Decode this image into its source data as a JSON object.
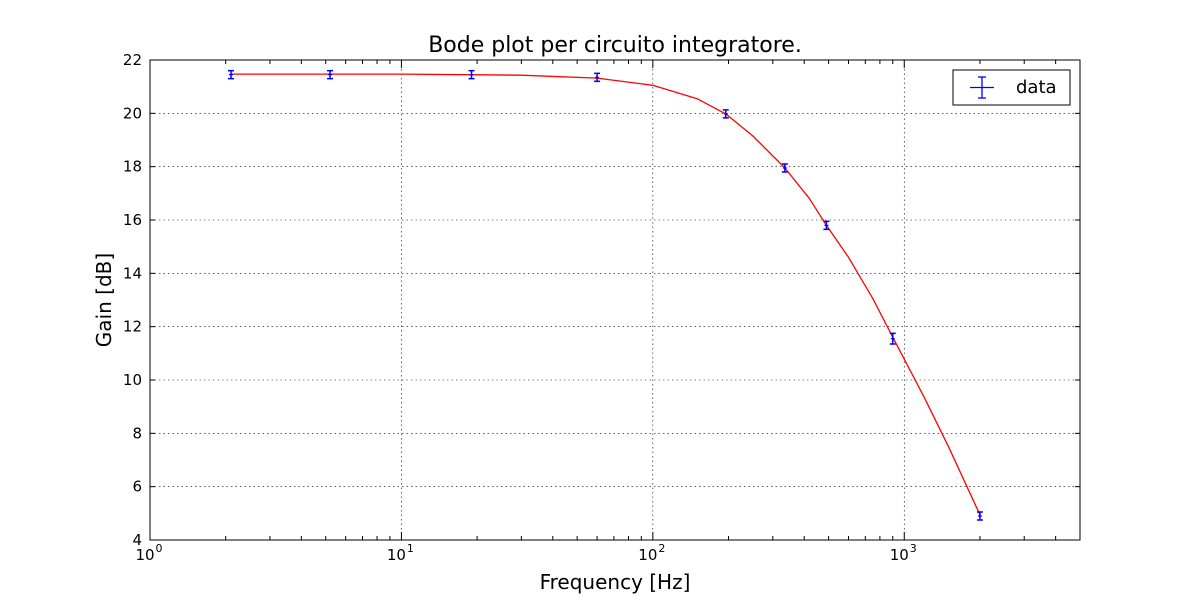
{
  "chart_data": {
    "type": "scatter",
    "title": "Bode plot per circuito integratore.",
    "xlabel": "Frequency [Hz]",
    "ylabel": "Gain [dB]",
    "xscale": "log",
    "xlim": [
      1,
      5000
    ],
    "ylim": [
      4,
      22
    ],
    "grid": true,
    "legend_position": "top-right",
    "x_ticks": [
      {
        "value": 1,
        "base": "10",
        "exp": "0"
      },
      {
        "value": 10,
        "base": "10",
        "exp": "1"
      },
      {
        "value": 100,
        "base": "10",
        "exp": "2"
      },
      {
        "value": 1000,
        "base": "10",
        "exp": "3"
      }
    ],
    "y_ticks": [
      {
        "value": 4,
        "label": "4"
      },
      {
        "value": 6,
        "label": "6"
      },
      {
        "value": 8,
        "label": "8"
      },
      {
        "value": 10,
        "label": "10"
      },
      {
        "value": 12,
        "label": "12"
      },
      {
        "value": 14,
        "label": "14"
      },
      {
        "value": 16,
        "label": "16"
      },
      {
        "value": 18,
        "label": "18"
      },
      {
        "value": 20,
        "label": "20"
      },
      {
        "value": 22,
        "label": "22"
      }
    ],
    "series": [
      {
        "name": "data",
        "kind": "errorbar",
        "color": "#0000ff",
        "x": [
          2.1,
          5.2,
          19,
          60,
          195,
          335,
          490,
          900,
          2000
        ],
        "y": [
          21.45,
          21.45,
          21.45,
          21.35,
          19.98,
          17.95,
          15.8,
          11.55,
          4.9
        ],
        "yerr": [
          0.15,
          0.15,
          0.15,
          0.15,
          0.15,
          0.15,
          0.15,
          0.2,
          0.15
        ]
      },
      {
        "kind": "line",
        "color": "#ff0000",
        "x": [
          2.1,
          10,
          30,
          60,
          100,
          150,
          195,
          250,
          335,
          420,
          490,
          600,
          750,
          900,
          1200,
          1500,
          2000
        ],
        "y": [
          21.47,
          21.47,
          21.43,
          21.32,
          21.05,
          20.55,
          19.98,
          19.15,
          17.95,
          16.8,
          15.8,
          14.6,
          13.05,
          11.6,
          9.35,
          7.5,
          4.95
        ]
      }
    ]
  }
}
